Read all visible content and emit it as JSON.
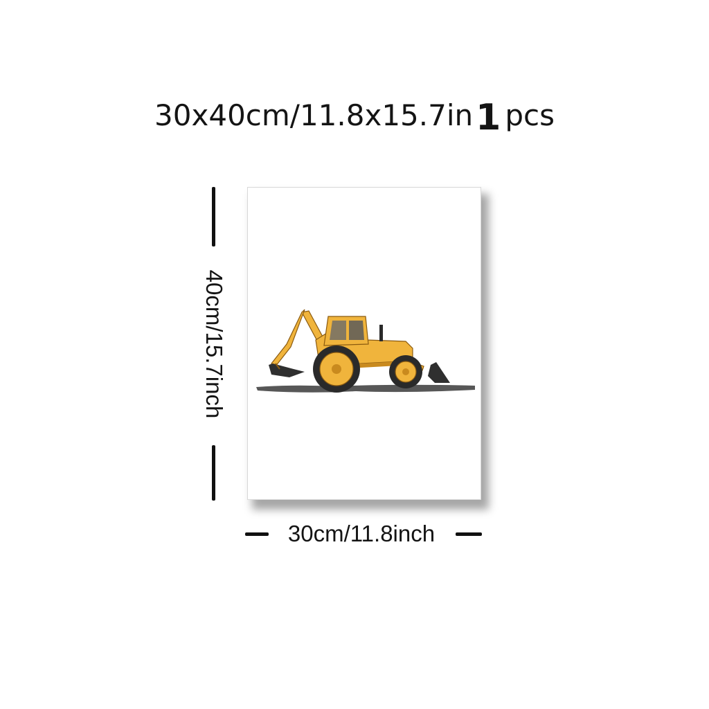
{
  "title": {
    "size_text": "30x40cm/11.8x15.7in",
    "quantity": "1",
    "unit": "pcs"
  },
  "dimensions": {
    "height_label": "40cm/15.7inch",
    "width_label": "30cm/11.8inch"
  },
  "poster": {
    "artwork": "backhoe-loader-watercolor",
    "colors": {
      "body": "#f0b43c",
      "body_dark": "#c98a1e",
      "tire": "#2a2a2a",
      "window": "#6a6a6a",
      "ground": "#3a3a3a"
    }
  }
}
